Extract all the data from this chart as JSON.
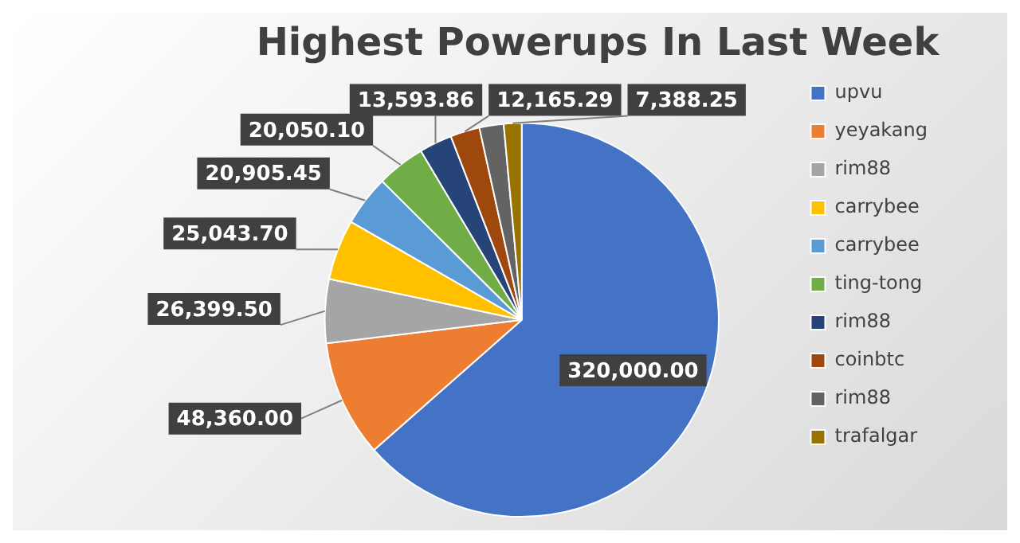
{
  "chart_data": {
    "type": "pie",
    "title": "Highest Powerups In Last Week",
    "categories": [
      "upvu",
      "yeyakang",
      "rim88",
      "carrybee",
      "carrybee",
      "ting-tong",
      "rim88",
      "coinbtc",
      "rim88",
      "trafalgar"
    ],
    "values": [
      320000,
      48360,
      26399.5,
      25043.7,
      20905.45,
      20050.1,
      13593.86,
      12165.29,
      10000,
      7388.25
    ],
    "value_labels": [
      "320,000.00",
      "48,360.00",
      "26,399.50",
      "25,043.70",
      "20,905.45",
      "20,050.10",
      "13,593.86",
      "12,165.29",
      null,
      "7,388.25"
    ],
    "colors": [
      "#4472c4",
      "#ed7d31",
      "#a5a5a5",
      "#ffc000",
      "#5b9bd5",
      "#70ad47",
      "#264478",
      "#9e480e",
      "#636363",
      "#997300"
    ],
    "legend": "right"
  }
}
